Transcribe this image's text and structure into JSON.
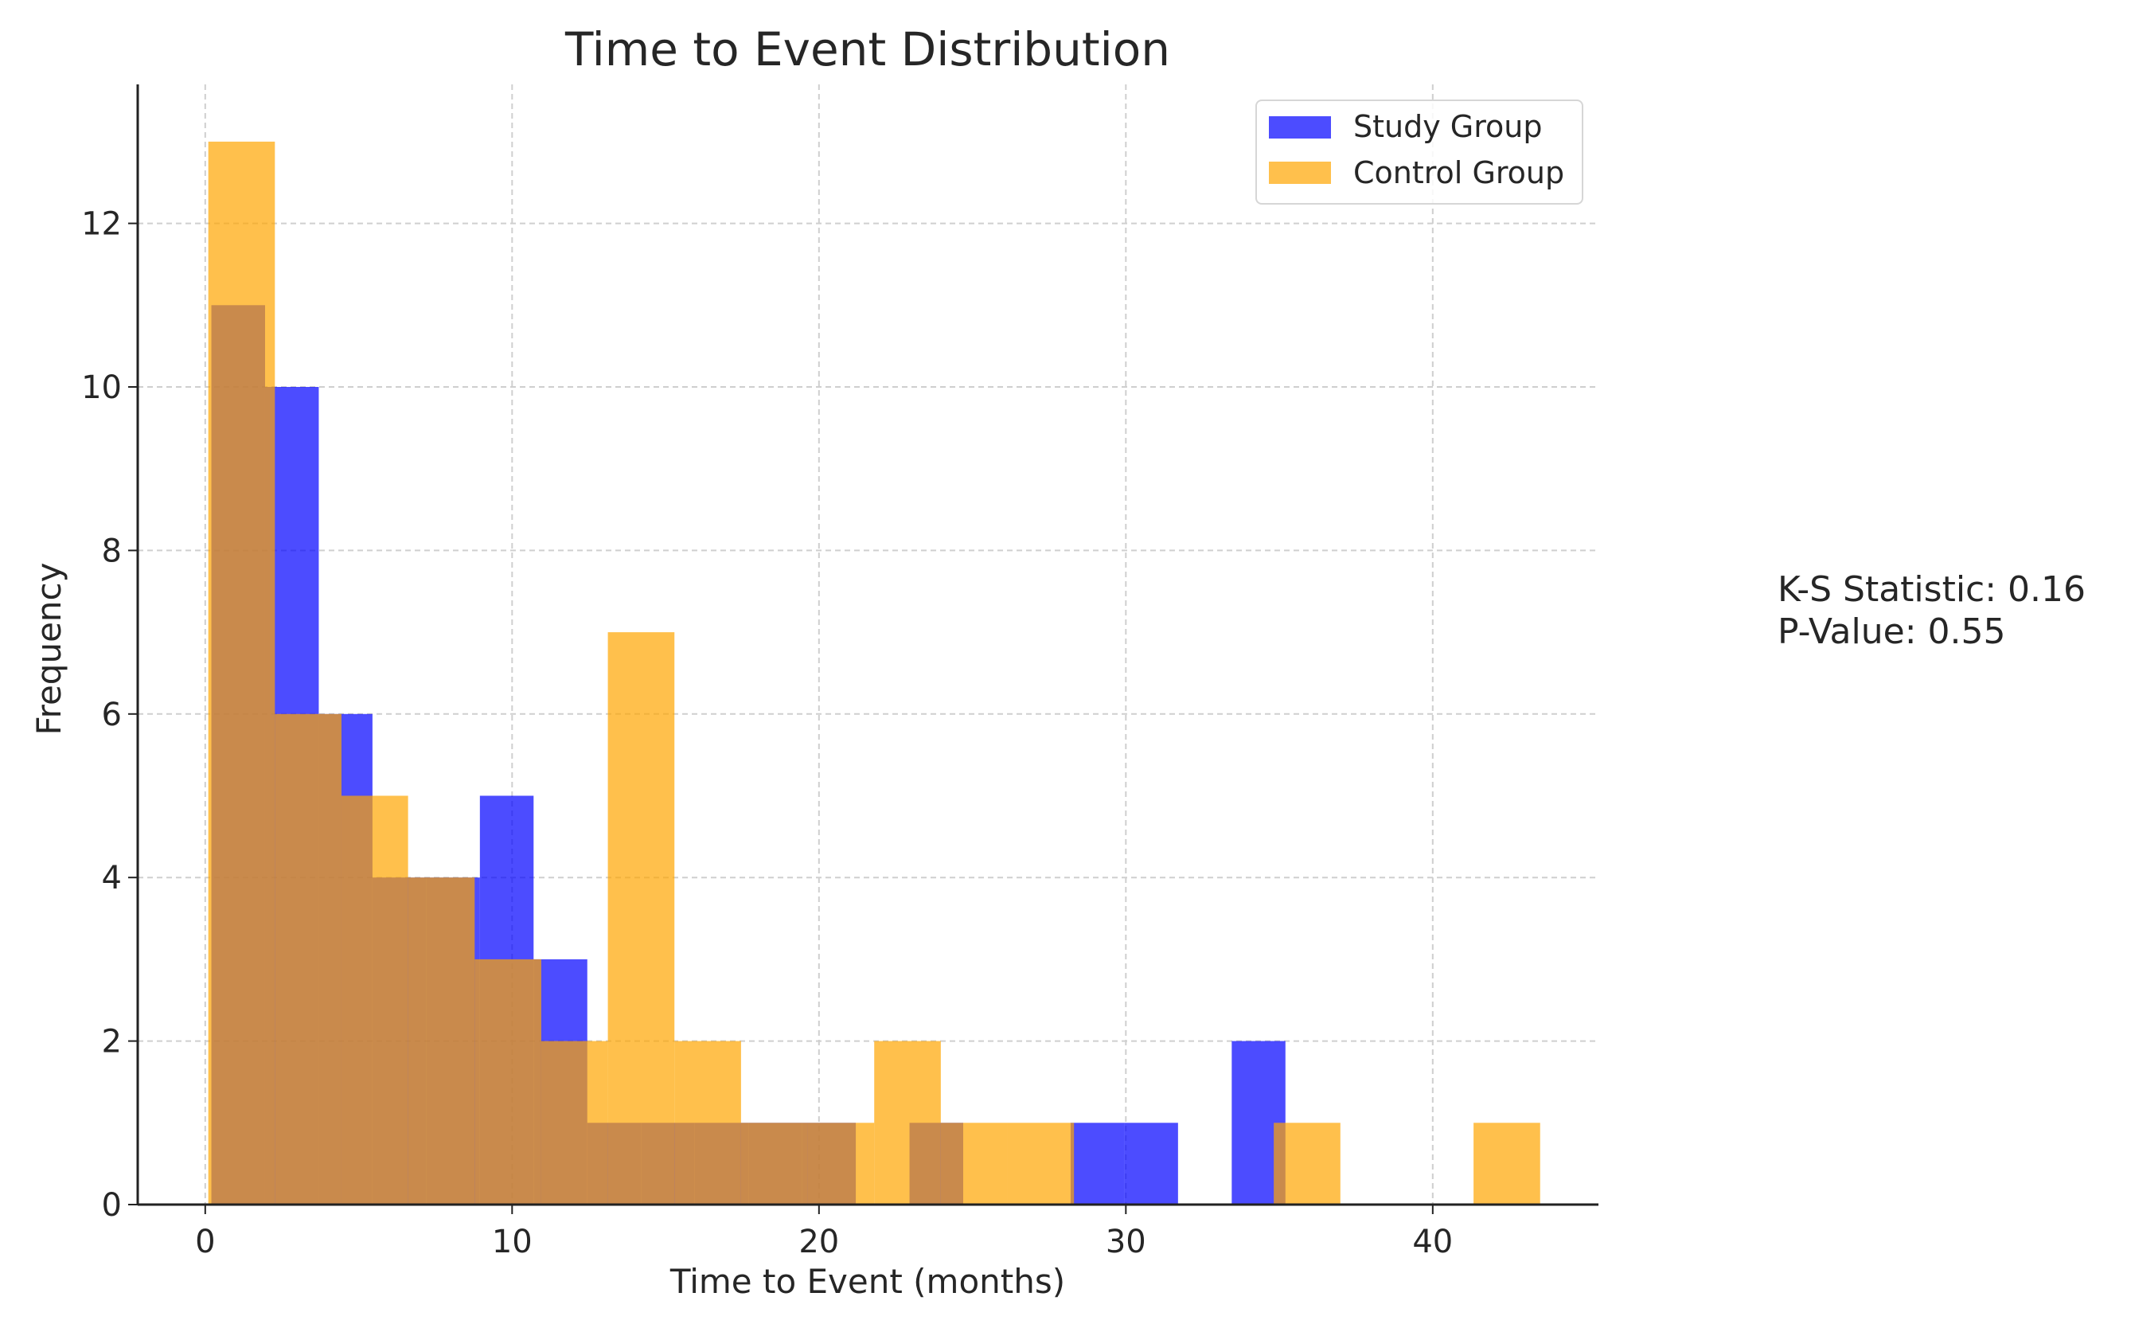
{
  "chart_data": {
    "type": "histogram",
    "title": "Time to Event Distribution",
    "xlabel": "Time to Event (months)",
    "ylabel": "Frequency",
    "xlim": [
      -2.2,
      45.4
    ],
    "ylim": [
      0,
      13.7
    ],
    "xticks": [
      0,
      10,
      20,
      30,
      40
    ],
    "yticks": [
      0,
      2,
      4,
      6,
      8,
      10,
      12
    ],
    "grid": true,
    "legend_position": "top-right",
    "series": [
      {
        "name": "Study Group",
        "color": "#0000ff",
        "opacity": 0.7,
        "bins": [
          {
            "x0": 0.2,
            "x1": 1.95,
            "y": 11
          },
          {
            "x0": 1.95,
            "x1": 3.7,
            "y": 10
          },
          {
            "x0": 3.7,
            "x1": 5.45,
            "y": 6
          },
          {
            "x0": 5.45,
            "x1": 7.2,
            "y": 4
          },
          {
            "x0": 7.2,
            "x1": 8.95,
            "y": 4
          },
          {
            "x0": 8.95,
            "x1": 10.7,
            "y": 5
          },
          {
            "x0": 10.7,
            "x1": 12.45,
            "y": 3
          },
          {
            "x0": 12.45,
            "x1": 14.2,
            "y": 1
          },
          {
            "x0": 14.2,
            "x1": 15.95,
            "y": 1
          },
          {
            "x0": 15.95,
            "x1": 17.7,
            "y": 1
          },
          {
            "x0": 17.7,
            "x1": 19.45,
            "y": 1
          },
          {
            "x0": 19.45,
            "x1": 21.2,
            "y": 1
          },
          {
            "x0": 21.2,
            "x1": 22.95,
            "y": 0
          },
          {
            "x0": 22.95,
            "x1": 24.7,
            "y": 1
          },
          {
            "x0": 24.7,
            "x1": 26.45,
            "y": 0
          },
          {
            "x0": 26.45,
            "x1": 28.2,
            "y": 0
          },
          {
            "x0": 28.2,
            "x1": 29.95,
            "y": 1
          },
          {
            "x0": 29.95,
            "x1": 31.7,
            "y": 1
          },
          {
            "x0": 31.7,
            "x1": 33.45,
            "y": 0
          },
          {
            "x0": 33.45,
            "x1": 35.2,
            "y": 2
          }
        ]
      },
      {
        "name": "Control Group",
        "color": "#ffa500",
        "opacity": 0.7,
        "bins": [
          {
            "x0": 0.1,
            "x1": 2.27,
            "y": 13
          },
          {
            "x0": 2.27,
            "x1": 4.44,
            "y": 6
          },
          {
            "x0": 4.44,
            "x1": 6.61,
            "y": 5
          },
          {
            "x0": 6.61,
            "x1": 8.78,
            "y": 4
          },
          {
            "x0": 8.78,
            "x1": 10.95,
            "y": 3
          },
          {
            "x0": 10.95,
            "x1": 13.12,
            "y": 2
          },
          {
            "x0": 13.12,
            "x1": 15.29,
            "y": 7
          },
          {
            "x0": 15.29,
            "x1": 17.46,
            "y": 2
          },
          {
            "x0": 17.46,
            "x1": 19.63,
            "y": 1
          },
          {
            "x0": 19.63,
            "x1": 21.8,
            "y": 1
          },
          {
            "x0": 21.8,
            "x1": 23.97,
            "y": 2
          },
          {
            "x0": 23.97,
            "x1": 26.14,
            "y": 1
          },
          {
            "x0": 26.14,
            "x1": 28.31,
            "y": 1
          },
          {
            "x0": 28.31,
            "x1": 30.48,
            "y": 0
          },
          {
            "x0": 30.48,
            "x1": 32.65,
            "y": 0
          },
          {
            "x0": 32.65,
            "x1": 34.82,
            "y": 0
          },
          {
            "x0": 34.82,
            "x1": 36.99,
            "y": 1
          },
          {
            "x0": 36.99,
            "x1": 39.16,
            "y": 0
          },
          {
            "x0": 39.16,
            "x1": 41.33,
            "y": 0
          },
          {
            "x0": 41.33,
            "x1": 43.5,
            "y": 1
          }
        ]
      }
    ],
    "annotation": {
      "lines": [
        "K-S Statistic: 0.16",
        "P-Value: 0.55"
      ]
    }
  }
}
